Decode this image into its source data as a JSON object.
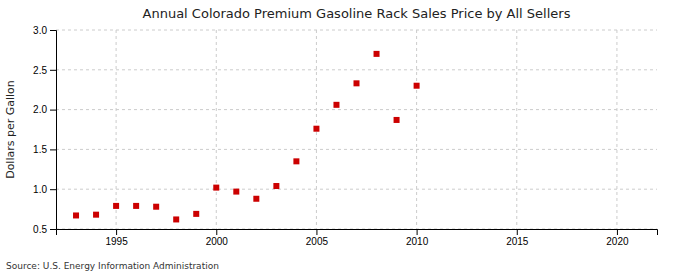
{
  "chart_data": {
    "type": "scatter",
    "title": "Annual Colorado Premium Gasoline Rack Sales Price by All Sellers",
    "ylabel": "Dollars per Gallon",
    "annotations": [
      "Source: U.S. Energy Information Administration"
    ],
    "x": [
      1993,
      1994,
      1995,
      1996,
      1997,
      1998,
      1999,
      2000,
      2001,
      2002,
      2003,
      2004,
      2005,
      2006,
      2007,
      2008,
      2009,
      2010
    ],
    "values": [
      0.67,
      0.68,
      0.79,
      0.79,
      0.78,
      0.62,
      0.69,
      1.02,
      0.97,
      0.88,
      1.04,
      1.35,
      1.76,
      2.06,
      2.33,
      2.7,
      1.87,
      2.3
    ],
    "color": "#cc0000",
    "marker": "square",
    "xlim": [
      1992,
      2022
    ],
    "ylim": [
      0.5,
      3.0
    ],
    "xticks": [
      1995,
      2000,
      2005,
      2010,
      2015,
      2020
    ],
    "yticks": [
      0.5,
      {
        "value": 1.0,
        "label": "1.0"
      },
      1.5,
      {
        "value": 2.0,
        "label": "2.0"
      },
      2.5,
      {
        "value": 3.0,
        "label": "3.0"
      }
    ],
    "grid": true
  }
}
